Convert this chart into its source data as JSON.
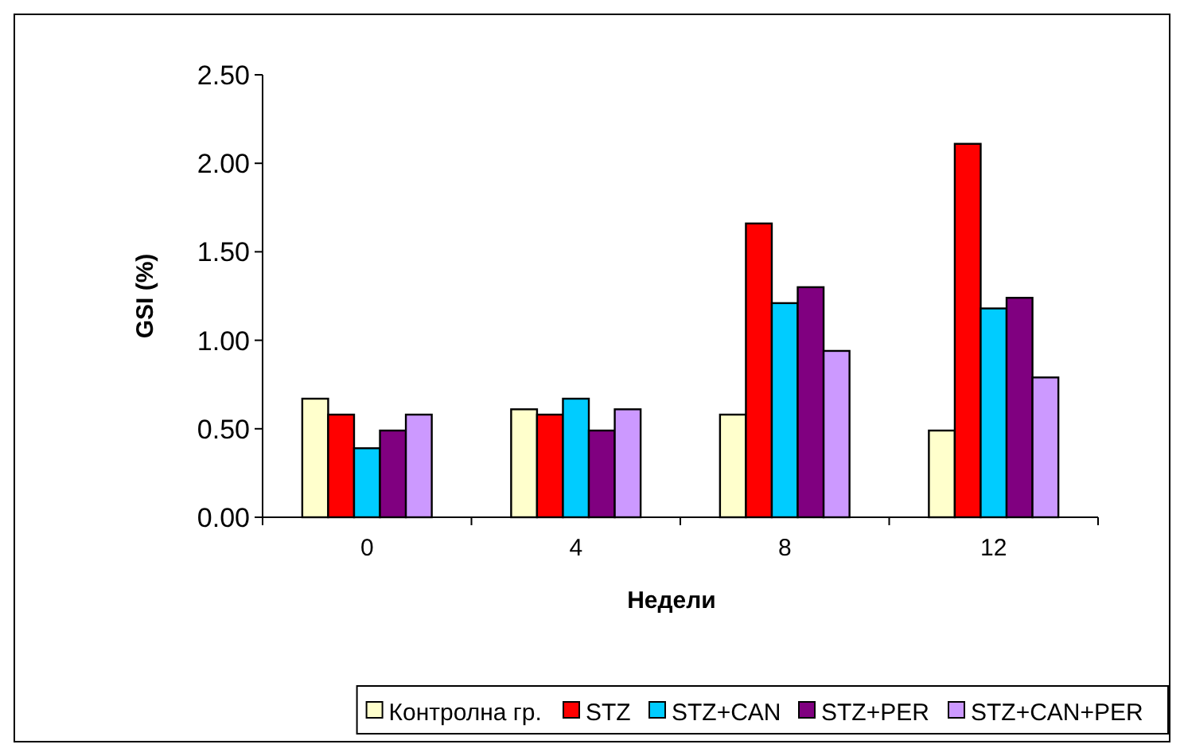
{
  "chart_data": {
    "type": "bar",
    "xlabel": "Недели",
    "ylabel": "GSI (%)",
    "categories": [
      "0",
      "4",
      "8",
      "12"
    ],
    "series": [
      {
        "name": "Контролна гр.",
        "color": "#ffffcc",
        "values": [
          0.67,
          0.61,
          0.58,
          0.49
        ]
      },
      {
        "name": "STZ",
        "color": "#ff0000",
        "values": [
          0.58,
          0.58,
          1.66,
          2.11
        ]
      },
      {
        "name": "STZ+CAN",
        "color": "#00ccff",
        "values": [
          0.39,
          0.67,
          1.21,
          1.18
        ]
      },
      {
        "name": "STZ+PER",
        "color": "#800080",
        "values": [
          0.49,
          0.49,
          1.3,
          1.24
        ]
      },
      {
        "name": "STZ+CAN+PER",
        "color": "#cc99ff",
        "values": [
          0.58,
          0.61,
          0.94,
          0.79
        ]
      }
    ],
    "ylim": [
      0,
      2.5
    ],
    "yticks": [
      {
        "value": 0,
        "label": "0.00"
      },
      {
        "value": 0.5,
        "label": "0.50"
      },
      {
        "value": 1,
        "label": "1.00"
      },
      {
        "value": 1.5,
        "label": "1.50"
      },
      {
        "value": 2,
        "label": "2.00"
      },
      {
        "value": 2.5,
        "label": "2.50"
      }
    ],
    "grid": false,
    "legend": "bottom"
  }
}
